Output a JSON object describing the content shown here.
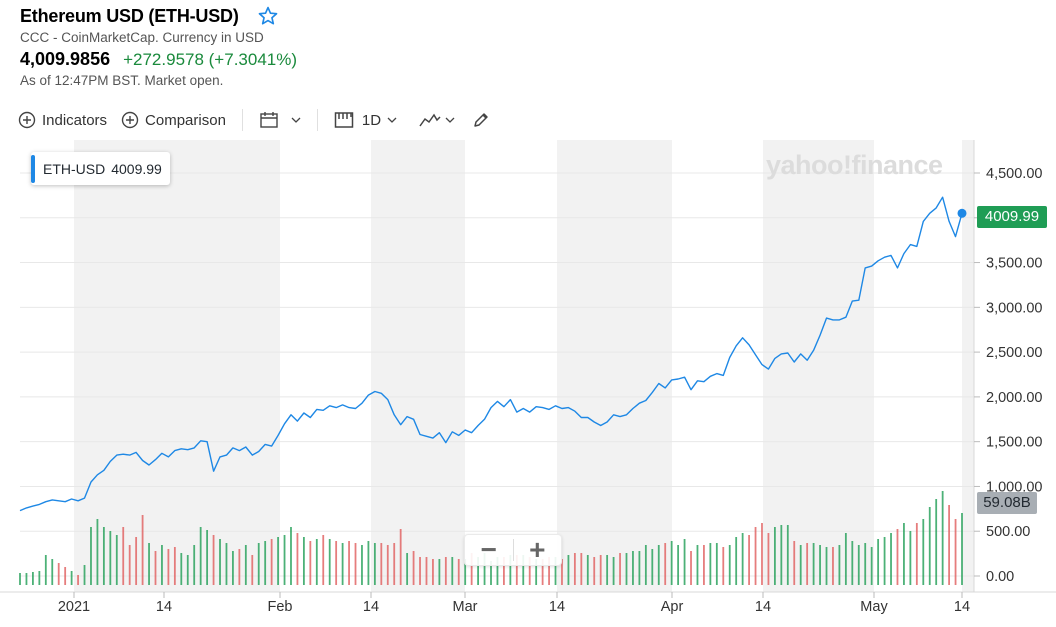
{
  "header": {
    "title": "Ethereum USD (ETH-USD)",
    "subtitle": "CCC - CoinMarketCap. Currency in USD",
    "price": "4,009.9856",
    "change": "+272.9578 (+7.3041%)",
    "as_of": "As of 12:47PM BST. Market open.",
    "star_icon": "star-outline-icon"
  },
  "toolbar": {
    "indicators_label": "Indicators",
    "comparison_label": "Comparison",
    "interval_label": "1D",
    "icons": [
      "circle-plus-icon",
      "calendar-icon",
      "candle-icon",
      "line-chart-icon",
      "draw-pencil-icon"
    ]
  },
  "legend": {
    "symbol": "ETH-USD",
    "value": "4009.99"
  },
  "watermark": "yahoo!finance",
  "price_tag": "4009.99",
  "volume_tag": "59.08B",
  "zoom": {
    "minus": "−",
    "plus": "+"
  },
  "colors": {
    "line": "#1e88e5",
    "up": "#1f9d55",
    "down": "#e05c5c",
    "band": "#f2f2f2"
  },
  "chart_data": {
    "type": "line",
    "y_ticks": [
      "4,500.00",
      "4,000.00",
      "3,500.00",
      "3,000.00",
      "2,500.00",
      "2,000.00",
      "1,500.00",
      "1,000.00",
      "500.00",
      "0.00"
    ],
    "x_ticks": [
      "2021",
      "14",
      "Feb",
      "14",
      "Mar",
      "14",
      "Apr",
      "14",
      "May",
      "14"
    ],
    "ylim": [
      0,
      4500
    ],
    "series": [
      {
        "values": [
          730,
          760,
          780,
          800,
          830,
          850,
          840,
          830,
          860,
          840,
          870,
          1050,
          1130,
          1180,
          1280,
          1350,
          1360,
          1350,
          1380,
          1290,
          1240,
          1300,
          1370,
          1330,
          1400,
          1420,
          1410,
          1430,
          1510,
          1500,
          1170,
          1330,
          1350,
          1430,
          1400,
          1440,
          1350,
          1390,
          1470,
          1450,
          1570,
          1700,
          1800,
          1730,
          1820,
          1770,
          1860,
          1850,
          1900,
          1880,
          1910,
          1880,
          1870,
          1930,
          2020,
          2060,
          2040,
          1970,
          1800,
          1690,
          1780,
          1750,
          1580,
          1560,
          1540,
          1600,
          1490,
          1610,
          1570,
          1630,
          1600,
          1680,
          1750,
          1880,
          1950,
          1890,
          1970,
          1830,
          1870,
          1830,
          1890,
          1880,
          1860,
          1900,
          1870,
          1880,
          1840,
          1770,
          1770,
          1720,
          1680,
          1720,
          1800,
          1780,
          1800,
          1870,
          1930,
          1960,
          2050,
          2150,
          2100,
          2190,
          2200,
          2220,
          2080,
          2180,
          2170,
          2230,
          2260,
          2240,
          2440,
          2570,
          2660,
          2580,
          2470,
          2360,
          2310,
          2430,
          2480,
          2490,
          2390,
          2480,
          2410,
          2520,
          2690,
          2880,
          2860,
          2860,
          2890,
          3070,
          3080,
          3440,
          3460,
          3520,
          3560,
          3580,
          3440,
          3600,
          3700,
          3680,
          3960,
          4050,
          4110,
          4230,
          3960,
          3790,
          4050
        ]
      }
    ],
    "volume_values": [
      12,
      12,
      13,
      14,
      30,
      26,
      22,
      18,
      14,
      10,
      20,
      58,
      66,
      58,
      54,
      50,
      58,
      40,
      48,
      70,
      42,
      34,
      40,
      36,
      38,
      32,
      30,
      40,
      58,
      55,
      50,
      46,
      42,
      34,
      36,
      40,
      30,
      42,
      44,
      46,
      48,
      50,
      58,
      52,
      48,
      44,
      46,
      50,
      46,
      44,
      42,
      44,
      42,
      40,
      44,
      42,
      42,
      40,
      42,
      56,
      32,
      34,
      28,
      28,
      26,
      26,
      28,
      28,
      26,
      26,
      32,
      28,
      32,
      24,
      28,
      28,
      30,
      30,
      30,
      28,
      26,
      26,
      28,
      28,
      26,
      30,
      32,
      32,
      30,
      28,
      30,
      30,
      28,
      32,
      32,
      34,
      34,
      40,
      36,
      40,
      42,
      44,
      40,
      46,
      34,
      40,
      40,
      42,
      42,
      38,
      40,
      48,
      52,
      50,
      58,
      62,
      52,
      58,
      60,
      60,
      44,
      40,
      42,
      42,
      40,
      38,
      38,
      40,
      52,
      44,
      40,
      42,
      38,
      46,
      48,
      52,
      56,
      62,
      54,
      62,
      66,
      78,
      86,
      94,
      80,
      66,
      72
    ],
    "volume_up": [
      1,
      1,
      1,
      1,
      1,
      1,
      0,
      0,
      1,
      0,
      1,
      1,
      1,
      1,
      1,
      1,
      0,
      0,
      0,
      0,
      1,
      0,
      1,
      0,
      0,
      1,
      1,
      1,
      1,
      1,
      0,
      1,
      1,
      1,
      0,
      1,
      0,
      1,
      1,
      0,
      1,
      1,
      1,
      0,
      1,
      0,
      1,
      0,
      1,
      0,
      1,
      0,
      0,
      1,
      1,
      1,
      0,
      0,
      0,
      0,
      1,
      0,
      0,
      0,
      0,
      1,
      0,
      1,
      0,
      1,
      0,
      1,
      1,
      1,
      1,
      0,
      1,
      0,
      1,
      0,
      1,
      0,
      0,
      1,
      0,
      1,
      0,
      0,
      1,
      0,
      0,
      1,
      1,
      0,
      1,
      1,
      1,
      1,
      1,
      1,
      0,
      1,
      1,
      1,
      0,
      1,
      0,
      1,
      1,
      0,
      1,
      1,
      1,
      0,
      0,
      0,
      0,
      1,
      1,
      1,
      0,
      1,
      0,
      1,
      1,
      1,
      0,
      1,
      1,
      1,
      1,
      1,
      1,
      1,
      1,
      1,
      0,
      1,
      1,
      0,
      1,
      1,
      1,
      1,
      0,
      0,
      1
    ]
  }
}
